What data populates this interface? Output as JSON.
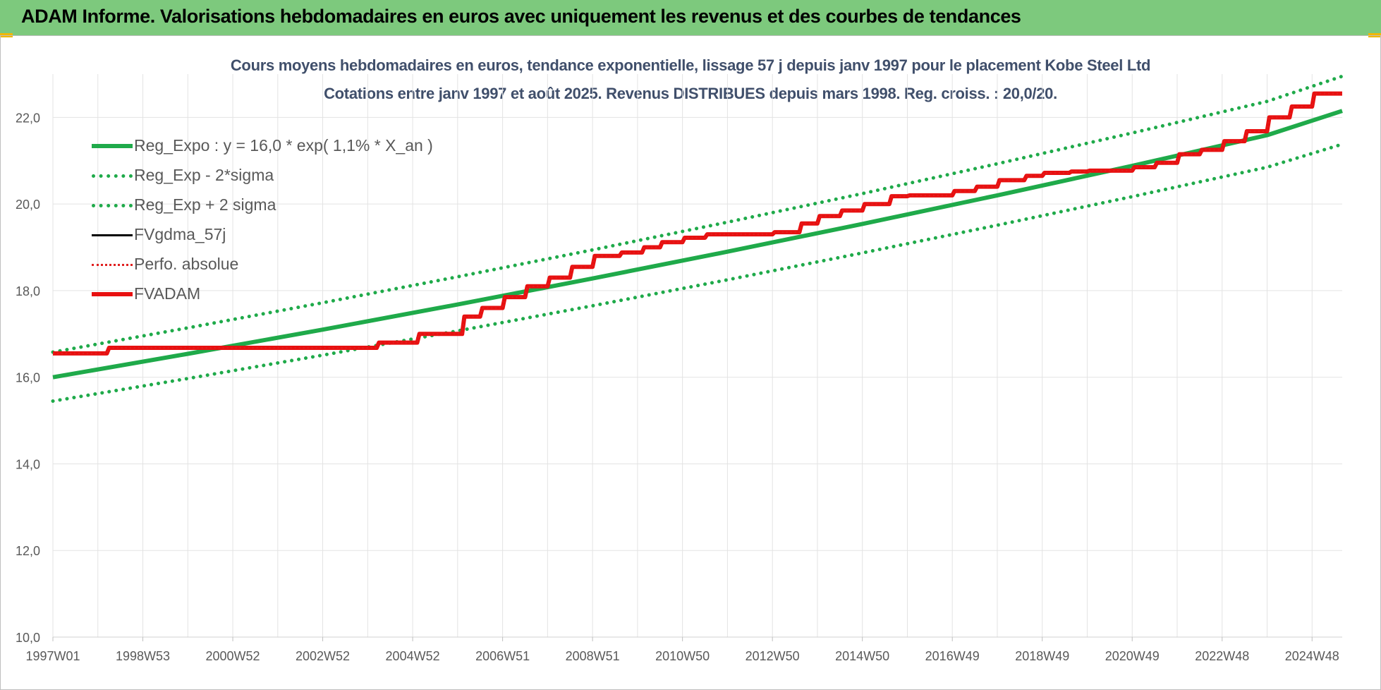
{
  "banner": {
    "title": "ADAM Informe. Valorisations hebdomadaires en euros avec uniquement les revenus et des courbes de tendances"
  },
  "chart_data": {
    "type": "line",
    "title_line1": "Cours moyens hebdomadaires en euros, tendance exponentielle, lissage 57 j depuis janv 1997 pour le placement Kobe Steel Ltd",
    "title_line2": "Cotations entre janv 1997 et août 2025. Revenus DISTRIBUES depuis mars 1998. Reg. croiss. : 20,0/20.",
    "xlabel": "",
    "ylabel": "",
    "xlim": [
      1997.0,
      2025.67
    ],
    "ylim": [
      10,
      23
    ],
    "y_ticks": [
      10,
      12,
      14,
      16,
      18,
      20,
      22
    ],
    "y_tick_labels": [
      "10,0",
      "12,0",
      "14,0",
      "16,0",
      "18,0",
      "20,0",
      "22,0"
    ],
    "x_tick_labels": [
      "1997W01",
      "1998W53",
      "2000W52",
      "2002W52",
      "2004W52",
      "2006W51",
      "2008W51",
      "2010W50",
      "2012W50",
      "2014W50",
      "2016W49",
      "2018W49",
      "2020W49",
      "2022W48",
      "2024W48"
    ],
    "x_tick_years": [
      1997.0,
      1999.0,
      2001.0,
      2003.0,
      2005.0,
      2007.0,
      2009.0,
      2011.0,
      2013.0,
      2015.0,
      2017.0,
      2019.0,
      2021.0,
      2023.0,
      2025.0
    ],
    "grid": true,
    "legend_position": "top-left",
    "series": [
      {
        "name": "Reg_Expo : y = 16,0 * exp( 1,1% *  X_an )",
        "color": "#1faa4a",
        "style": "solid-thick",
        "x": [
          1997.0,
          2000.0,
          2003.0,
          2006.0,
          2009.0,
          2012.0,
          2015.0,
          2018.0,
          2021.0,
          2024.0,
          2025.67
        ],
        "y": [
          16.0,
          16.54,
          17.1,
          17.68,
          18.28,
          18.9,
          19.54,
          20.2,
          20.88,
          21.59,
          22.15
        ]
      },
      {
        "name": "Reg_Exp - 2*sigma",
        "color": "#1faa4a",
        "style": "dotted",
        "x": [
          1997.0,
          2000.0,
          2003.0,
          2006.0,
          2009.0,
          2012.0,
          2015.0,
          2018.0,
          2021.0,
          2024.0,
          2025.67
        ],
        "y": [
          15.45,
          15.97,
          16.51,
          17.07,
          17.65,
          18.25,
          18.87,
          19.51,
          20.17,
          20.85,
          21.38
        ]
      },
      {
        "name": "Reg_Exp + 2 sigma",
        "color": "#1faa4a",
        "style": "dotted",
        "x": [
          1997.0,
          2000.0,
          2003.0,
          2006.0,
          2009.0,
          2012.0,
          2015.0,
          2018.0,
          2021.0,
          2024.0,
          2025.67
        ],
        "y": [
          16.58,
          17.14,
          17.72,
          18.32,
          18.94,
          19.58,
          20.24,
          20.93,
          21.64,
          22.37,
          22.95
        ]
      },
      {
        "name": "FVgdma_57j",
        "color": "#000000",
        "style": "solid-thin",
        "x": [
          1997.0,
          1998.2,
          1998.25,
          2003.0,
          2004.2,
          2004.25,
          2005.1,
          2005.15,
          2006.1,
          2006.15,
          2006.5,
          2006.55,
          2007.0,
          2007.05,
          2007.5,
          2007.55,
          2008.0,
          2008.05,
          2008.5,
          2008.55,
          2009.0,
          2009.05,
          2009.6,
          2009.65,
          2010.1,
          2010.15,
          2010.5,
          2010.55,
          2011.0,
          2011.05,
          2011.5,
          2011.55,
          2013.0,
          2013.05,
          2013.6,
          2013.65,
          2014.0,
          2014.05,
          2014.5,
          2014.55,
          2015.0,
          2015.05,
          2015.6,
          2015.65,
          2016.0,
          2016.05,
          2017.0,
          2017.05,
          2017.5,
          2017.55,
          2018.0,
          2018.05,
          2018.6,
          2018.65,
          2019.0,
          2019.05,
          2019.6,
          2019.65,
          2020.0,
          2020.05,
          2021.0,
          2021.05,
          2021.5,
          2021.55,
          2022.0,
          2022.05,
          2022.5,
          2022.55,
          2023.0,
          2023.05,
          2023.5,
          2023.55,
          2024.0,
          2024.05,
          2024.5,
          2024.55,
          2025.0,
          2025.05,
          2025.67
        ],
        "y": [
          16.55,
          16.55,
          16.68,
          16.68,
          16.68,
          16.8,
          16.8,
          17.0,
          17.0,
          17.4,
          17.4,
          17.6,
          17.6,
          17.85,
          17.85,
          18.1,
          18.1,
          18.3,
          18.3,
          18.55,
          18.55,
          18.8,
          18.8,
          18.88,
          18.88,
          19.0,
          19.0,
          19.12,
          19.12,
          19.22,
          19.22,
          19.3,
          19.3,
          19.35,
          19.35,
          19.55,
          19.55,
          19.72,
          19.72,
          19.85,
          19.85,
          20.0,
          20.0,
          20.18,
          20.18,
          20.2,
          20.2,
          20.3,
          20.3,
          20.4,
          20.4,
          20.55,
          20.55,
          20.65,
          20.65,
          20.72,
          20.72,
          20.75,
          20.75,
          20.77,
          20.77,
          20.85,
          20.85,
          20.95,
          20.95,
          21.15,
          21.15,
          21.25,
          21.25,
          21.45,
          21.45,
          21.68,
          21.68,
          22.0,
          22.0,
          22.25,
          22.25,
          22.55,
          22.55
        ]
      },
      {
        "name": "Perfo. absolue",
        "color": "#e02020",
        "style": "dotted-thin",
        "x": [
          1997.0,
          1998.2,
          1998.25,
          2003.0,
          2004.2,
          2004.25,
          2005.1,
          2005.15,
          2006.1,
          2006.15,
          2006.5,
          2006.55,
          2007.0,
          2007.05,
          2007.5,
          2007.55,
          2008.0,
          2008.05,
          2008.5,
          2008.55,
          2009.0,
          2009.05,
          2009.6,
          2009.65,
          2010.1,
          2010.15,
          2010.5,
          2010.55,
          2011.0,
          2011.05,
          2011.5,
          2011.55,
          2013.0,
          2013.05,
          2013.6,
          2013.65,
          2014.0,
          2014.05,
          2014.5,
          2014.55,
          2015.0,
          2015.05,
          2015.6,
          2015.65,
          2016.0,
          2016.05,
          2017.0,
          2017.05,
          2017.5,
          2017.55,
          2018.0,
          2018.05,
          2018.6,
          2018.65,
          2019.0,
          2019.05,
          2019.6,
          2019.65,
          2020.0,
          2020.05,
          2021.0,
          2021.05,
          2021.5,
          2021.55,
          2022.0,
          2022.05,
          2022.5,
          2022.55,
          2023.0,
          2023.05,
          2023.5,
          2023.55,
          2024.0,
          2024.05,
          2024.5,
          2024.55,
          2025.0,
          2025.05,
          2025.67
        ],
        "y": [
          16.55,
          16.55,
          16.68,
          16.68,
          16.68,
          16.8,
          16.8,
          17.0,
          17.0,
          17.4,
          17.4,
          17.6,
          17.6,
          17.85,
          17.85,
          18.1,
          18.1,
          18.3,
          18.3,
          18.55,
          18.55,
          18.8,
          18.8,
          18.88,
          18.88,
          19.0,
          19.0,
          19.12,
          19.12,
          19.22,
          19.22,
          19.3,
          19.3,
          19.35,
          19.35,
          19.55,
          19.55,
          19.72,
          19.72,
          19.85,
          19.85,
          20.0,
          20.0,
          20.18,
          20.18,
          20.2,
          20.2,
          20.3,
          20.3,
          20.4,
          20.4,
          20.55,
          20.55,
          20.65,
          20.65,
          20.72,
          20.72,
          20.75,
          20.75,
          20.77,
          20.77,
          20.85,
          20.85,
          20.95,
          20.95,
          21.15,
          21.15,
          21.25,
          21.25,
          21.45,
          21.45,
          21.68,
          21.68,
          22.0,
          22.0,
          22.25,
          22.25,
          22.55,
          22.55
        ]
      },
      {
        "name": "FVADAM",
        "color": "#e81010",
        "style": "solid-thick",
        "x": [
          1997.0,
          1998.2,
          1998.25,
          2003.0,
          2004.2,
          2004.25,
          2005.1,
          2005.15,
          2006.1,
          2006.15,
          2006.5,
          2006.55,
          2007.0,
          2007.05,
          2007.5,
          2007.55,
          2008.0,
          2008.05,
          2008.5,
          2008.55,
          2009.0,
          2009.05,
          2009.6,
          2009.65,
          2010.1,
          2010.15,
          2010.5,
          2010.55,
          2011.0,
          2011.05,
          2011.5,
          2011.55,
          2013.0,
          2013.05,
          2013.6,
          2013.65,
          2014.0,
          2014.05,
          2014.5,
          2014.55,
          2015.0,
          2015.05,
          2015.6,
          2015.65,
          2016.0,
          2016.05,
          2017.0,
          2017.05,
          2017.5,
          2017.55,
          2018.0,
          2018.05,
          2018.6,
          2018.65,
          2019.0,
          2019.05,
          2019.6,
          2019.65,
          2020.0,
          2020.05,
          2021.0,
          2021.05,
          2021.5,
          2021.55,
          2022.0,
          2022.05,
          2022.5,
          2022.55,
          2023.0,
          2023.05,
          2023.5,
          2023.55,
          2024.0,
          2024.05,
          2024.5,
          2024.55,
          2025.0,
          2025.05,
          2025.67
        ],
        "y": [
          16.55,
          16.55,
          16.68,
          16.68,
          16.68,
          16.8,
          16.8,
          17.0,
          17.0,
          17.4,
          17.4,
          17.6,
          17.6,
          17.85,
          17.85,
          18.1,
          18.1,
          18.3,
          18.3,
          18.55,
          18.55,
          18.8,
          18.8,
          18.88,
          18.88,
          19.0,
          19.0,
          19.12,
          19.12,
          19.22,
          19.22,
          19.3,
          19.3,
          19.35,
          19.35,
          19.55,
          19.55,
          19.72,
          19.72,
          19.85,
          19.85,
          20.0,
          20.0,
          20.18,
          20.18,
          20.2,
          20.2,
          20.3,
          20.3,
          20.4,
          20.4,
          20.55,
          20.55,
          20.65,
          20.65,
          20.72,
          20.72,
          20.75,
          20.75,
          20.77,
          20.77,
          20.85,
          20.85,
          20.95,
          20.95,
          21.15,
          21.15,
          21.25,
          21.25,
          21.45,
          21.45,
          21.68,
          21.68,
          22.0,
          22.0,
          22.25,
          22.25,
          22.55,
          22.55
        ]
      }
    ]
  }
}
